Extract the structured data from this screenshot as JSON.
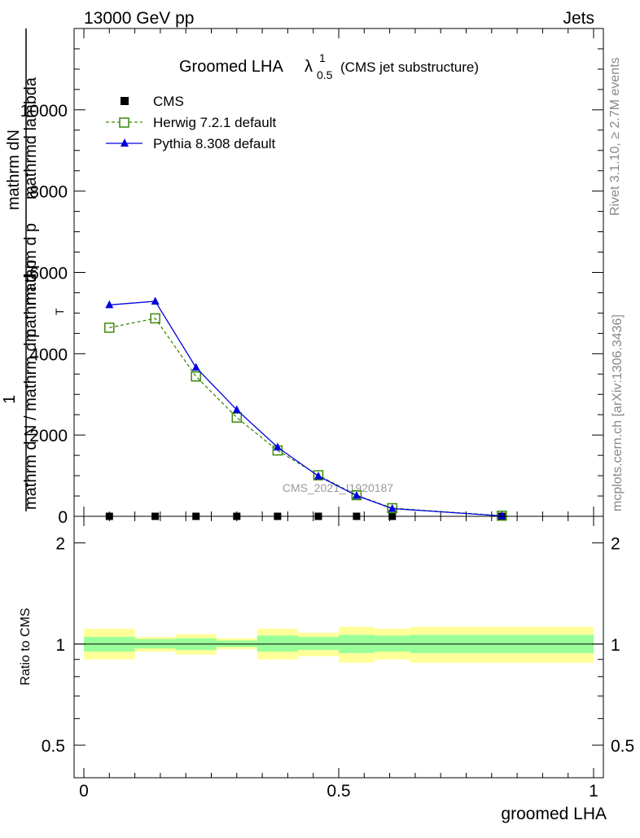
{
  "header": {
    "left": "13000 GeV pp",
    "right": "Jets"
  },
  "side_text": {
    "rivet": "Rivet 3.1.10, ≥ 2.7M events",
    "mcplots": "mcplots.cern.ch [arXiv:1306.3436]"
  },
  "watermark": "CMS_2021_I1920187",
  "chart_data": [
    {
      "type": "line",
      "title_main": "Groomed LHA",
      "title_lambda": "λ",
      "title_sup": "1",
      "title_sub": "0.5",
      "title_note": "(CMS jet substructure)",
      "ylabel_num": "mathrm dN",
      "ylabel_prefix": "1",
      "ylabel_den": "mathrm d N / mathrm d p",
      "ylabel_overlap": "mathrm d p",
      "ylabel_overlap2": "mathrm d p",
      "ylabel_overlap3": "mathrm d p",
      "ylabel_top": "mathrm d p",
      "ylabel_right": "mathrmd lambda",
      "ylabel_mid": "mathrm d p",
      "ylabel_sub": "T",
      "ylabel_full_top": "mathrm d p",
      "ylim": [
        0,
        12000
      ],
      "yticks": [
        0,
        2000,
        4000,
        6000,
        8000,
        10000
      ],
      "yticklabels": [
        "0",
        "2000",
        "4000",
        "6000",
        "8000",
        "10000"
      ],
      "xlim": [
        -0.02,
        1.0
      ],
      "x": [
        0.05,
        0.14,
        0.22,
        0.3,
        0.38,
        0.46,
        0.535,
        0.605,
        0.82
      ],
      "series": [
        {
          "name": "CMS",
          "color": "#000000",
          "marker": "square-filled",
          "values": [
            0,
            0,
            0,
            0,
            0,
            0,
            0,
            0,
            0
          ]
        },
        {
          "name": "Herwig 7.2.1 default",
          "color": "#3a8a0a",
          "marker": "square-open",
          "dash": true,
          "values": [
            4640,
            4870,
            3440,
            2430,
            1620,
            1010,
            520,
            200,
            15
          ]
        },
        {
          "name": "Pythia 8.308 default",
          "color": "#0000dd",
          "marker": "triangle-filled",
          "values": [
            5200,
            5290,
            3660,
            2620,
            1700,
            990,
            510,
            190,
            10
          ]
        }
      ],
      "legend": [
        "CMS",
        "Herwig 7.2.1 default",
        "Pythia 8.308 default"
      ],
      "legend_position": "top-left"
    },
    {
      "type": "area",
      "ylabel": "Ratio to CMS",
      "xlabel": "groomed LHA",
      "ylim": [
        0.4,
        2.4
      ],
      "log_y": true,
      "yticks": [
        0.5,
        1,
        2
      ],
      "yticklabels": [
        "0.5",
        "1",
        "2"
      ],
      "xticks": [
        0,
        0.5,
        1
      ],
      "xticklabels": [
        "0",
        "0.5",
        "1"
      ],
      "bins": [
        {
          "lo": 0.0,
          "hi": 0.1,
          "inner": [
            0.95,
            1.05
          ],
          "outer": [
            0.9,
            1.11
          ]
        },
        {
          "lo": 0.1,
          "hi": 0.18,
          "inner": [
            0.97,
            1.035
          ],
          "outer": [
            0.95,
            1.05
          ]
        },
        {
          "lo": 0.18,
          "hi": 0.26,
          "inner": [
            0.96,
            1.04
          ],
          "outer": [
            0.93,
            1.07
          ]
        },
        {
          "lo": 0.26,
          "hi": 0.34,
          "inner": [
            0.98,
            1.025
          ],
          "outer": [
            0.965,
            1.04
          ]
        },
        {
          "lo": 0.34,
          "hi": 0.42,
          "inner": [
            0.95,
            1.06
          ],
          "outer": [
            0.9,
            1.11
          ]
        },
        {
          "lo": 0.42,
          "hi": 0.5,
          "inner": [
            0.96,
            1.05
          ],
          "outer": [
            0.92,
            1.08
          ]
        },
        {
          "lo": 0.5,
          "hi": 0.57,
          "inner": [
            0.94,
            1.065
          ],
          "outer": [
            0.88,
            1.125
          ]
        },
        {
          "lo": 0.57,
          "hi": 0.64,
          "inner": [
            0.95,
            1.06
          ],
          "outer": [
            0.9,
            1.11
          ]
        },
        {
          "lo": 0.64,
          "hi": 1.0,
          "inner": [
            0.94,
            1.065
          ],
          "outer": [
            0.88,
            1.125
          ]
        }
      ],
      "colors": {
        "inner": "#99ff99",
        "outer": "#ffff99"
      }
    }
  ]
}
